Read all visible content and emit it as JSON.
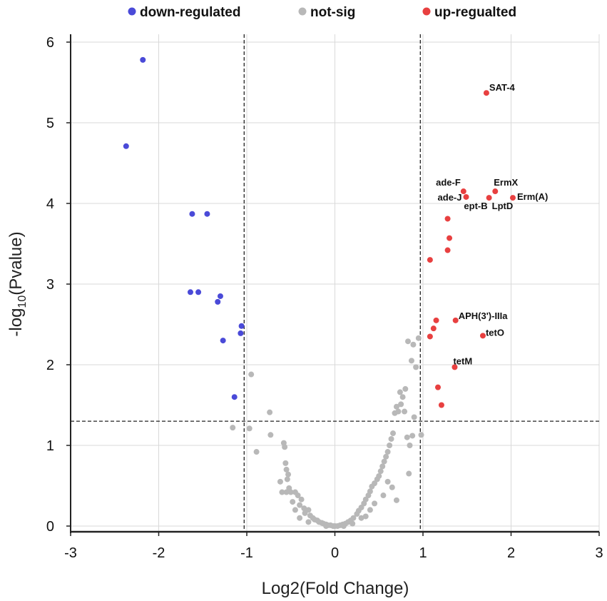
{
  "chart_data": {
    "type": "scatter",
    "title": "",
    "xlabel": "Log2(Fold Change)",
    "ylabel_main": "-log",
    "ylabel_sub": "10",
    "ylabel_rest": "(Pvalue)",
    "xlim": [
      -3,
      3
    ],
    "ylim": [
      0,
      6
    ],
    "xticks": [
      -3,
      -2,
      -1,
      0,
      1,
      2,
      3
    ],
    "yticks": [
      0,
      1,
      2,
      3,
      4,
      5,
      6
    ],
    "grid": true,
    "thresholds": {
      "x": [
        -1.03,
        0.97
      ],
      "y": 1.3
    },
    "legend_position": "top",
    "colors": {
      "down": "#4a4ad8",
      "notsig": "#b8b8b8",
      "up": "#e84040"
    },
    "series": [
      {
        "name": "down-regulated",
        "key": "down",
        "points": [
          [
            -2.18,
            5.78
          ],
          [
            -2.37,
            4.71
          ],
          [
            -1.62,
            3.87
          ],
          [
            -1.45,
            3.87
          ],
          [
            -1.64,
            2.9
          ],
          [
            -1.55,
            2.9
          ],
          [
            -1.3,
            2.85
          ],
          [
            -1.33,
            2.78
          ],
          [
            -1.06,
            2.48
          ],
          [
            -1.07,
            2.39
          ],
          [
            -1.27,
            2.3
          ],
          [
            -1.14,
            1.6
          ]
        ]
      },
      {
        "name": "not-sig",
        "key": "notsig",
        "points": [
          [
            -0.95,
            1.88
          ],
          [
            -1.16,
            1.22
          ],
          [
            -0.97,
            1.21
          ],
          [
            -0.89,
            0.92
          ],
          [
            -0.74,
            1.41
          ],
          [
            -0.73,
            1.13
          ],
          [
            -0.58,
            1.03
          ],
          [
            -0.57,
            0.98
          ],
          [
            -0.56,
            0.78
          ],
          [
            -0.55,
            0.7
          ],
          [
            -0.53,
            0.64
          ],
          [
            -0.54,
            0.58
          ],
          [
            -0.52,
            0.47
          ],
          [
            -0.55,
            0.42
          ],
          [
            -0.5,
            0.42
          ],
          [
            -0.45,
            0.42
          ],
          [
            -0.42,
            0.38
          ],
          [
            -0.38,
            0.33
          ],
          [
            -0.4,
            0.26
          ],
          [
            -0.35,
            0.22
          ],
          [
            -0.34,
            0.16
          ],
          [
            -0.3,
            0.2
          ],
          [
            -0.28,
            0.13
          ],
          [
            -0.25,
            0.1
          ],
          [
            -0.23,
            0.08
          ],
          [
            -0.2,
            0.07
          ],
          [
            -0.18,
            0.05
          ],
          [
            -0.15,
            0.04
          ],
          [
            -0.13,
            0.03
          ],
          [
            -0.1,
            0.02
          ],
          [
            -0.08,
            0.01
          ],
          [
            -0.05,
            0.01
          ],
          [
            -0.02,
            0.0
          ],
          [
            0.0,
            0.0
          ],
          [
            0.03,
            0.0
          ],
          [
            0.06,
            0.01
          ],
          [
            0.09,
            0.02
          ],
          [
            0.12,
            0.03
          ],
          [
            0.15,
            0.05
          ],
          [
            0.18,
            0.07
          ],
          [
            0.21,
            0.1
          ],
          [
            0.25,
            0.15
          ],
          [
            0.27,
            0.19
          ],
          [
            0.3,
            0.23
          ],
          [
            0.33,
            0.28
          ],
          [
            0.35,
            0.33
          ],
          [
            0.38,
            0.38
          ],
          [
            0.4,
            0.43
          ],
          [
            0.42,
            0.49
          ],
          [
            0.45,
            0.53
          ],
          [
            0.48,
            0.58
          ],
          [
            0.5,
            0.62
          ],
          [
            0.52,
            0.68
          ],
          [
            0.54,
            0.74
          ],
          [
            0.56,
            0.8
          ],
          [
            0.58,
            0.86
          ],
          [
            0.6,
            0.92
          ],
          [
            0.62,
            1.0
          ],
          [
            0.64,
            1.08
          ],
          [
            0.66,
            1.15
          ],
          [
            0.68,
            1.4
          ],
          [
            0.7,
            1.48
          ],
          [
            0.72,
            1.42
          ],
          [
            0.75,
            1.51
          ],
          [
            0.77,
            1.6
          ],
          [
            0.8,
            1.7
          ],
          [
            0.74,
            1.66
          ],
          [
            0.79,
            1.42
          ],
          [
            0.82,
            1.1
          ],
          [
            0.85,
            1.0
          ],
          [
            0.88,
            1.12
          ],
          [
            0.9,
            1.35
          ],
          [
            0.84,
            0.65
          ],
          [
            0.6,
            0.55
          ],
          [
            0.65,
            0.48
          ],
          [
            0.55,
            0.38
          ],
          [
            0.7,
            0.32
          ],
          [
            0.45,
            0.28
          ],
          [
            0.83,
            2.29
          ],
          [
            0.89,
            2.25
          ],
          [
            0.87,
            2.05
          ],
          [
            0.92,
            1.97
          ],
          [
            0.95,
            2.33
          ],
          [
            0.98,
            1.13
          ],
          [
            0.3,
            0.1
          ],
          [
            0.35,
            0.12
          ],
          [
            0.4,
            0.2
          ],
          [
            0.2,
            0.03
          ],
          [
            -0.3,
            0.05
          ],
          [
            -0.4,
            0.1
          ],
          [
            -0.45,
            0.2
          ],
          [
            -0.48,
            0.3
          ],
          [
            -0.6,
            0.42
          ],
          [
            -0.62,
            0.55
          ],
          [
            -0.1,
            0.0
          ],
          [
            0.1,
            0.0
          ]
        ]
      },
      {
        "name": "up-regualted",
        "key": "up",
        "points": [
          [
            1.72,
            5.37
          ],
          [
            1.46,
            4.15
          ],
          [
            1.49,
            4.08
          ],
          [
            1.75,
            4.07
          ],
          [
            1.82,
            4.15
          ],
          [
            2.02,
            4.07
          ],
          [
            1.28,
            3.81
          ],
          [
            1.3,
            3.57
          ],
          [
            1.28,
            3.42
          ],
          [
            1.08,
            3.3
          ],
          [
            1.37,
            2.55
          ],
          [
            1.15,
            2.55
          ],
          [
            1.12,
            2.45
          ],
          [
            1.08,
            2.35
          ],
          [
            1.68,
            2.36
          ],
          [
            1.36,
            1.97
          ],
          [
            1.17,
            1.72
          ],
          [
            1.21,
            1.5
          ]
        ]
      }
    ],
    "annotations": [
      {
        "text": "SAT-4",
        "x": 1.72,
        "y": 5.37,
        "dx": 4,
        "dy": -3,
        "anchor": "start"
      },
      {
        "text": "ade-F",
        "x": 1.46,
        "y": 4.15,
        "dx": -4,
        "dy": -8,
        "anchor": "end"
      },
      {
        "text": "ErmX",
        "x": 1.82,
        "y": 4.15,
        "dx": -2,
        "dy": -8,
        "anchor": "start"
      },
      {
        "text": "ade-J",
        "x": 1.49,
        "y": 4.08,
        "dx": -6,
        "dy": 5,
        "anchor": "end"
      },
      {
        "text": "Erm(A)",
        "x": 2.02,
        "y": 4.07,
        "dx": 6,
        "dy": 3,
        "anchor": "start"
      },
      {
        "text": "ept-B",
        "x": 1.75,
        "y": 4.07,
        "dx": -2,
        "dy": 16,
        "anchor": "end"
      },
      {
        "text": "LptD",
        "x": 1.75,
        "y": 4.07,
        "dx": 4,
        "dy": 16,
        "anchor": "start"
      },
      {
        "text": "APH(3')-IIIa",
        "x": 1.37,
        "y": 2.55,
        "dx": 4,
        "dy": -2,
        "anchor": "start"
      },
      {
        "text": "tetO",
        "x": 1.68,
        "y": 2.36,
        "dx": 4,
        "dy": 0,
        "anchor": "start"
      },
      {
        "text": "tetM",
        "x": 1.36,
        "y": 1.97,
        "dx": -2,
        "dy": -4,
        "anchor": "start"
      }
    ]
  }
}
